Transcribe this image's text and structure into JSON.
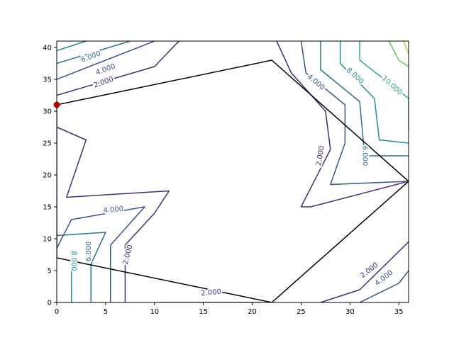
{
  "chart_data": {
    "type": "contour",
    "xlim": [
      0,
      36
    ],
    "ylim": [
      0,
      41
    ],
    "x_ticks": [
      0,
      5,
      10,
      15,
      20,
      25,
      30,
      35
    ],
    "y_ticks": [
      0,
      5,
      10,
      15,
      20,
      25,
      30,
      35,
      40
    ],
    "grid": false,
    "contour_levels": [
      {
        "level": 2,
        "label": "2.000",
        "color": "#472c7a"
      },
      {
        "level": 4,
        "label": "4.000",
        "color": "#3b528b"
      },
      {
        "level": 6,
        "label": "6.000",
        "color": "#2c728e"
      },
      {
        "level": 8,
        "label": "8.000",
        "color": "#21918c"
      },
      {
        "level": 10,
        "label": "10.000",
        "color": "#28ae80"
      },
      {
        "level": 12,
        "label": "",
        "color": "#5ec962"
      },
      {
        "level": 14,
        "label": "",
        "color": "#addc30"
      }
    ],
    "contour_lines": [
      {
        "level": 2,
        "points": [
          [
            0,
            27.5
          ],
          [
            3,
            25.5
          ],
          [
            1,
            16.5
          ],
          [
            11.5,
            17.5
          ],
          [
            10,
            14
          ],
          [
            7,
            9
          ],
          [
            7,
            0
          ]
        ]
      },
      {
        "level": 4,
        "points": [
          [
            0,
            8.5
          ],
          [
            1.5,
            13
          ],
          [
            9,
            15
          ],
          [
            5.5,
            9
          ],
          [
            5.5,
            0
          ]
        ]
      },
      {
        "level": 6,
        "points": [
          [
            0,
            10.5
          ],
          [
            5,
            11
          ],
          [
            3.5,
            6
          ],
          [
            3.5,
            0
          ]
        ]
      },
      {
        "level": 8,
        "points": [
          [
            1.5,
            7
          ],
          [
            1.5,
            0
          ]
        ]
      },
      {
        "level": 2,
        "points": [
          [
            0,
            32.5
          ],
          [
            10,
            37
          ],
          [
            12.5,
            41
          ]
        ]
      },
      {
        "level": 4,
        "points": [
          [
            0,
            35
          ],
          [
            10,
            41
          ]
        ]
      },
      {
        "level": 6,
        "points": [
          [
            0,
            37.5
          ],
          [
            7.5,
            41
          ]
        ]
      },
      {
        "level": 8,
        "points": [
          [
            0,
            39.5
          ],
          [
            3,
            41
          ]
        ]
      },
      {
        "level": 2,
        "points": [
          [
            10.5,
            0
          ],
          [
            21,
            0
          ]
        ]
      },
      {
        "level": 2,
        "points": [
          [
            22.5,
            41
          ],
          [
            24,
            36
          ],
          [
            27.5,
            30
          ],
          [
            28,
            24
          ],
          [
            25,
            15
          ],
          [
            26,
            15
          ],
          [
            36,
            19
          ]
        ]
      },
      {
        "level": 4,
        "points": [
          [
            25,
            41
          ],
          [
            25.5,
            36
          ],
          [
            29.5,
            31
          ],
          [
            29.5,
            25
          ],
          [
            28,
            18.5
          ],
          [
            36,
            19
          ]
        ]
      },
      {
        "level": 6,
        "points": [
          [
            27,
            41
          ],
          [
            27,
            36.5
          ],
          [
            31,
            31.5
          ],
          [
            31.5,
            23
          ],
          [
            36,
            23
          ]
        ]
      },
      {
        "level": 8,
        "points": [
          [
            29,
            41
          ],
          [
            29,
            37.5
          ],
          [
            32.5,
            32
          ],
          [
            33,
            25.5
          ],
          [
            36,
            25
          ]
        ]
      },
      {
        "level": 10,
        "points": [
          [
            31,
            41
          ],
          [
            31,
            38
          ],
          [
            36,
            32
          ],
          [
            36,
            27
          ]
        ]
      },
      {
        "level": 12,
        "points": [
          [
            34,
            41
          ],
          [
            35,
            38
          ],
          [
            36,
            37
          ]
        ]
      },
      {
        "level": 14,
        "points": [
          [
            35.5,
            41
          ],
          [
            36,
            39
          ]
        ]
      },
      {
        "level": 2,
        "points": [
          [
            27,
            0
          ],
          [
            31,
            2
          ],
          [
            36,
            9.5
          ]
        ]
      },
      {
        "level": 4,
        "points": [
          [
            31,
            0
          ],
          [
            35,
            3
          ],
          [
            36,
            5
          ]
        ]
      }
    ],
    "contour_labels": [
      {
        "text": "6.000",
        "x": 3.5,
        "y": 38.5,
        "angle": -20,
        "color": "#2c728e"
      },
      {
        "text": "4.000",
        "x": 5,
        "y": 36.5,
        "angle": -20,
        "color": "#3b528b"
      },
      {
        "text": "2.000",
        "x": 4.8,
        "y": 34.5,
        "angle": -20,
        "color": "#472c7a"
      },
      {
        "text": "4.000",
        "x": 26.5,
        "y": 34.5,
        "angle": 40,
        "color": "#3b528b"
      },
      {
        "text": "8.000",
        "x": 30.5,
        "y": 35.5,
        "angle": 42,
        "color": "#21918c"
      },
      {
        "text": "10.000",
        "x": 34.3,
        "y": 34,
        "angle": 42,
        "color": "#28ae80"
      },
      {
        "text": "2.000",
        "x": 27,
        "y": 23,
        "angle": -80,
        "color": "#472c7a"
      },
      {
        "text": "6.000",
        "x": 31.5,
        "y": 23,
        "angle": 90,
        "color": "#2c728e"
      },
      {
        "text": "4.000",
        "x": 5.8,
        "y": 14.5,
        "angle": -5,
        "color": "#3b528b"
      },
      {
        "text": "6.000",
        "x": 3.3,
        "y": 8,
        "angle": -90,
        "color": "#2c728e"
      },
      {
        "text": "8.000",
        "x": 1.7,
        "y": 6.5,
        "angle": 90,
        "color": "#21918c"
      },
      {
        "text": "2.000",
        "x": 7.3,
        "y": 7.5,
        "angle": -75,
        "color": "#472c7a"
      },
      {
        "text": "2.000",
        "x": 15.8,
        "y": 1.5,
        "angle": -5,
        "color": "#472c7a"
      },
      {
        "text": "2.000",
        "x": 32,
        "y": 5,
        "angle": -38,
        "color": "#472c7a"
      },
      {
        "text": "4.000",
        "x": 33.5,
        "y": 3.8,
        "angle": -38,
        "color": "#3b528b"
      }
    ],
    "polygon": {
      "points": [
        [
          0,
          31
        ],
        [
          22,
          38
        ],
        [
          36,
          19
        ],
        [
          22,
          0
        ],
        [
          0,
          7
        ]
      ],
      "color": "#000000"
    },
    "markers": [
      {
        "x": 0,
        "y": 31,
        "color": "#cc0000"
      }
    ]
  }
}
